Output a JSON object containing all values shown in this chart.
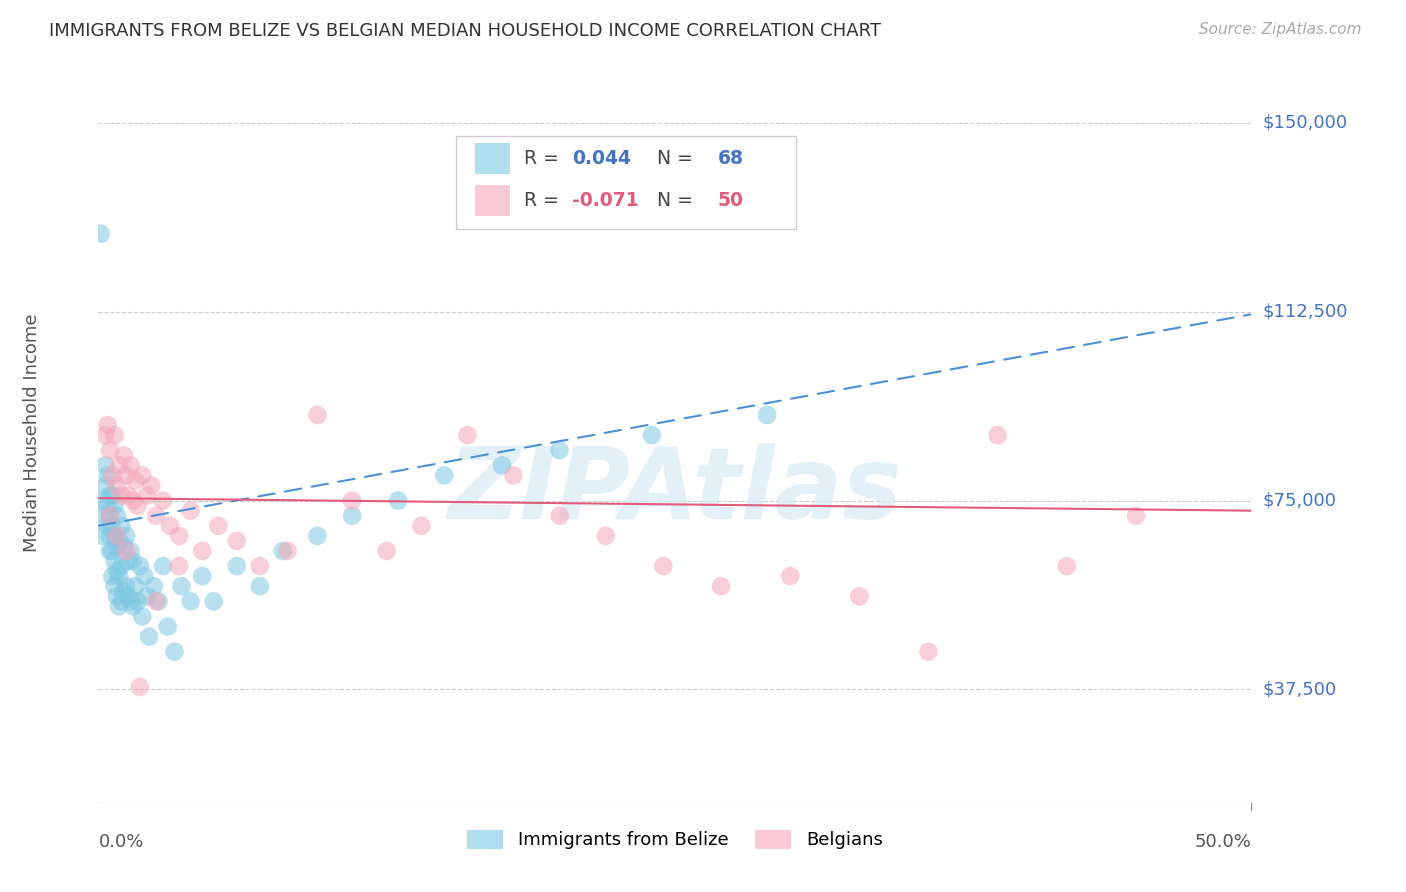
{
  "title": "IMMIGRANTS FROM BELIZE VS BELGIAN MEDIAN HOUSEHOLD INCOME CORRELATION CHART",
  "source": "Source: ZipAtlas.com",
  "ylabel": "Median Household Income",
  "ytick_labels": [
    "$150,000",
    "$112,500",
    "$75,000",
    "$37,500"
  ],
  "ytick_values": [
    150000,
    112500,
    75000,
    37500
  ],
  "ymax": 162000,
  "ymin": 15000,
  "xmax": 0.5,
  "xmin": 0.0,
  "blue_color": "#7ec8e3",
  "pink_color": "#f4a7b9",
  "line_blue_color": "#4a90d9",
  "line_pink_color": "#e05c7a",
  "blue_R": 0.044,
  "blue_N": 68,
  "pink_R": -0.071,
  "pink_N": 50,
  "blue_scatter_x": [
    0.001,
    0.002,
    0.002,
    0.003,
    0.003,
    0.003,
    0.004,
    0.004,
    0.004,
    0.005,
    0.005,
    0.005,
    0.005,
    0.006,
    0.006,
    0.006,
    0.006,
    0.007,
    0.007,
    0.007,
    0.007,
    0.008,
    0.008,
    0.008,
    0.008,
    0.009,
    0.009,
    0.009,
    0.01,
    0.01,
    0.01,
    0.011,
    0.011,
    0.012,
    0.012,
    0.013,
    0.013,
    0.014,
    0.014,
    0.015,
    0.015,
    0.016,
    0.017,
    0.018,
    0.019,
    0.02,
    0.021,
    0.022,
    0.024,
    0.026,
    0.028,
    0.03,
    0.033,
    0.036,
    0.04,
    0.045,
    0.05,
    0.06,
    0.07,
    0.08,
    0.095,
    0.11,
    0.13,
    0.15,
    0.175,
    0.2,
    0.24,
    0.29
  ],
  "blue_scatter_y": [
    128000,
    68000,
    75000,
    72000,
    78000,
    82000,
    70000,
    74000,
    80000,
    65000,
    68000,
    72000,
    76000,
    60000,
    65000,
    70000,
    76000,
    58000,
    63000,
    68000,
    74000,
    56000,
    61000,
    66000,
    72000,
    54000,
    60000,
    67000,
    55000,
    62000,
    70000,
    57000,
    66000,
    58000,
    68000,
    56000,
    63000,
    55000,
    65000,
    54000,
    63000,
    58000,
    55000,
    62000,
    52000,
    60000,
    56000,
    48000,
    58000,
    55000,
    62000,
    50000,
    45000,
    58000,
    55000,
    60000,
    55000,
    62000,
    58000,
    65000,
    68000,
    72000,
    75000,
    80000,
    82000,
    85000,
    88000,
    92000
  ],
  "pink_scatter_x": [
    0.003,
    0.004,
    0.005,
    0.006,
    0.007,
    0.008,
    0.009,
    0.01,
    0.011,
    0.012,
    0.013,
    0.014,
    0.015,
    0.016,
    0.017,
    0.019,
    0.021,
    0.023,
    0.025,
    0.028,
    0.031,
    0.035,
    0.04,
    0.045,
    0.052,
    0.06,
    0.07,
    0.082,
    0.095,
    0.11,
    0.125,
    0.14,
    0.16,
    0.18,
    0.2,
    0.22,
    0.245,
    0.27,
    0.3,
    0.33,
    0.36,
    0.39,
    0.42,
    0.45,
    0.005,
    0.008,
    0.012,
    0.018,
    0.025,
    0.035
  ],
  "pink_scatter_y": [
    88000,
    90000,
    85000,
    80000,
    88000,
    78000,
    82000,
    76000,
    84000,
    80000,
    76000,
    82000,
    75000,
    79000,
    74000,
    80000,
    76000,
    78000,
    72000,
    75000,
    70000,
    68000,
    73000,
    65000,
    70000,
    67000,
    62000,
    65000,
    92000,
    75000,
    65000,
    70000,
    88000,
    80000,
    72000,
    68000,
    62000,
    58000,
    60000,
    56000,
    45000,
    88000,
    62000,
    72000,
    72000,
    68000,
    65000,
    38000,
    55000,
    62000
  ]
}
